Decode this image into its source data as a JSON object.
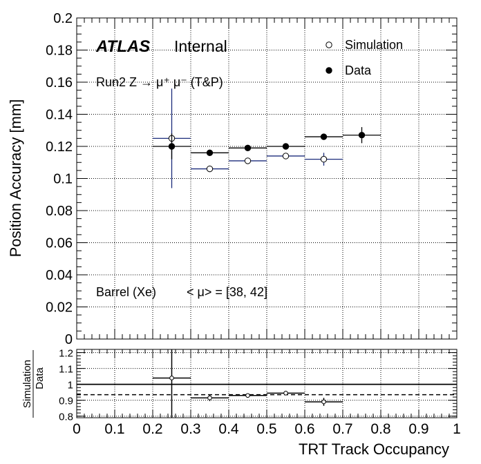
{
  "chart_data": [
    {
      "type": "scatter",
      "panel": "main",
      "title": "",
      "xlabel": "",
      "ylabel": "Position Accuracy [mm]",
      "xlim": [
        0,
        1
      ],
      "ylim": [
        0,
        0.2
      ],
      "grid": true,
      "x_ticks": [
        0,
        0.1,
        0.2,
        0.3,
        0.4,
        0.5,
        0.6,
        0.7,
        0.8,
        0.9,
        1
      ],
      "y_ticks": [
        0,
        0.02,
        0.04,
        0.06,
        0.08,
        0.1,
        0.12,
        0.14,
        0.16,
        0.18,
        0.2
      ],
      "y_tick_labels": [
        "0",
        "0.02",
        "0.04",
        "0.06",
        "0.08",
        "0.1",
        "0.12",
        "0.14",
        "0.16",
        "0.18",
        "0.2"
      ],
      "legend_position": "top-right",
      "annotations": {
        "atlas": "ATLAS",
        "internal": "Internal",
        "process": "Run2 Z → μ⁺ μ⁻ (T&P)",
        "region": "Barrel (Xe)",
        "pileup": "< μ> = [38, 42]"
      },
      "series": [
        {
          "name": "Simulation",
          "marker": "open-circle",
          "color": "#1a2a7a",
          "x": [
            0.25,
            0.35,
            0.45,
            0.55,
            0.65
          ],
          "x_halfwidth": 0.05,
          "y": [
            0.125,
            0.106,
            0.111,
            0.114,
            0.112
          ],
          "y_err": [
            0.031,
            0.002,
            0.001,
            0.001,
            0.004
          ]
        },
        {
          "name": "Data",
          "marker": "filled-circle",
          "color": "#000000",
          "x": [
            0.25,
            0.35,
            0.45,
            0.55,
            0.65,
            0.75
          ],
          "x_halfwidth": 0.05,
          "y": [
            0.12,
            0.116,
            0.119,
            0.12,
            0.126,
            0.127
          ],
          "y_err": [
            0.008,
            0.002,
            0.001,
            0.001,
            0.001,
            0.005
          ]
        }
      ]
    },
    {
      "type": "scatter",
      "panel": "ratio",
      "xlabel": "TRT Track Occupancy",
      "ylabel_num": "Simulation",
      "ylabel_den": "Data",
      "xlim": [
        0,
        1
      ],
      "ylim": [
        0.79,
        1.22
      ],
      "grid": true,
      "x_ticks": [
        0,
        0.1,
        0.2,
        0.3,
        0.4,
        0.5,
        0.6,
        0.7,
        0.8,
        0.9,
        1
      ],
      "x_tick_labels": [
        "0",
        "0.1",
        "0.2",
        "0.3",
        "0.4",
        "0.5",
        "0.6",
        "0.7",
        "0.8",
        "0.9",
        "1"
      ],
      "y_ticks": [
        0.8,
        0.9,
        1,
        1.1,
        1.2
      ],
      "y_tick_labels": [
        "0.8",
        "0.9",
        "1",
        "1.1",
        "1.2"
      ],
      "reference_line": 1,
      "mean_line": 0.935,
      "x": [
        0.25,
        0.35,
        0.45,
        0.55,
        0.65
      ],
      "x_halfwidth": 0.05,
      "y": [
        1.04,
        0.915,
        0.93,
        0.945,
        0.89
      ],
      "y_err": [
        0.26,
        0.02,
        0.008,
        0.008,
        0.025
      ]
    }
  ]
}
